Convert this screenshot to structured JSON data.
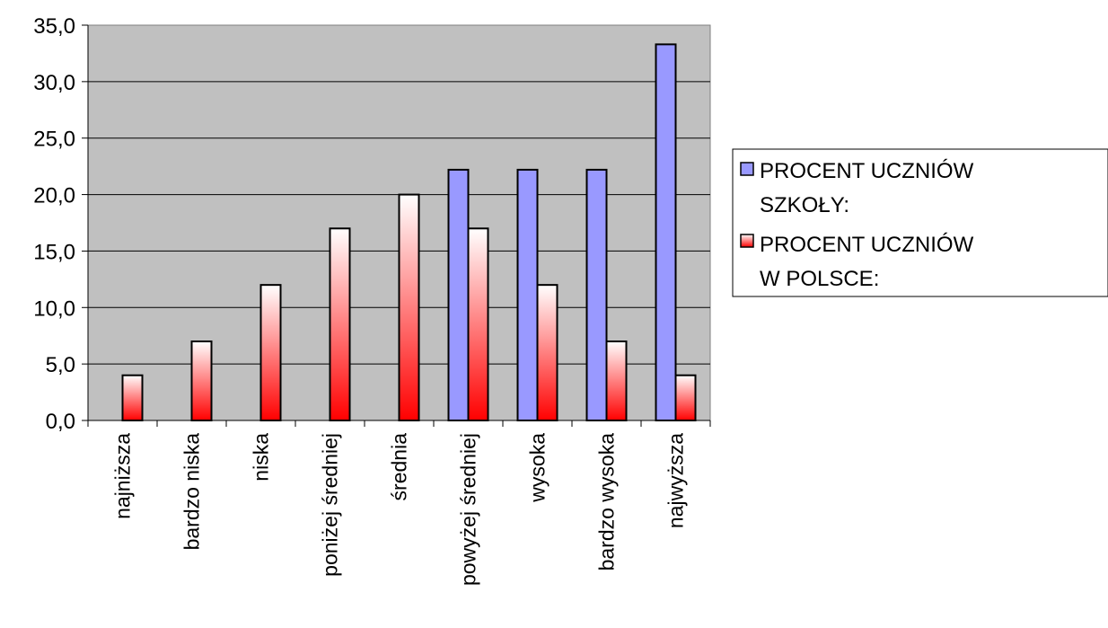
{
  "chart_data": {
    "type": "bar",
    "categories": [
      "najniższa",
      "bardzo niska",
      "niska",
      "poniżej średniej",
      "średnia",
      "powyżej średniej",
      "wysoka",
      "bardzo wysoka",
      "najwyższa"
    ],
    "series": [
      {
        "name": "PROCENT UCZNIÓW SZKOŁY:",
        "name_lines": [
          "PROCENT UCZNIÓW",
          "SZKOŁY:"
        ],
        "values": [
          0,
          0,
          0,
          0,
          0,
          22.2,
          22.2,
          22.2,
          33.3
        ],
        "color": "#9999ff"
      },
      {
        "name": "PROCENT UCZNIÓW W POLSCE:",
        "name_lines": [
          "PROCENT UCZNIÓW",
          "W POLSCE:"
        ],
        "values": [
          4,
          7,
          12,
          17,
          20,
          17,
          12,
          7,
          4
        ],
        "color": "#ff0000",
        "color_light": "#ffffff"
      }
    ],
    "yticks": [
      "0,0",
      "5,0",
      "10,0",
      "15,0",
      "20,0",
      "25,0",
      "30,0",
      "35,0"
    ],
    "ylim": [
      0,
      35
    ],
    "plot_background": "#c0c0c0",
    "grid": true,
    "legend_position": "right",
    "title": "",
    "xlabel": "",
    "ylabel": ""
  }
}
